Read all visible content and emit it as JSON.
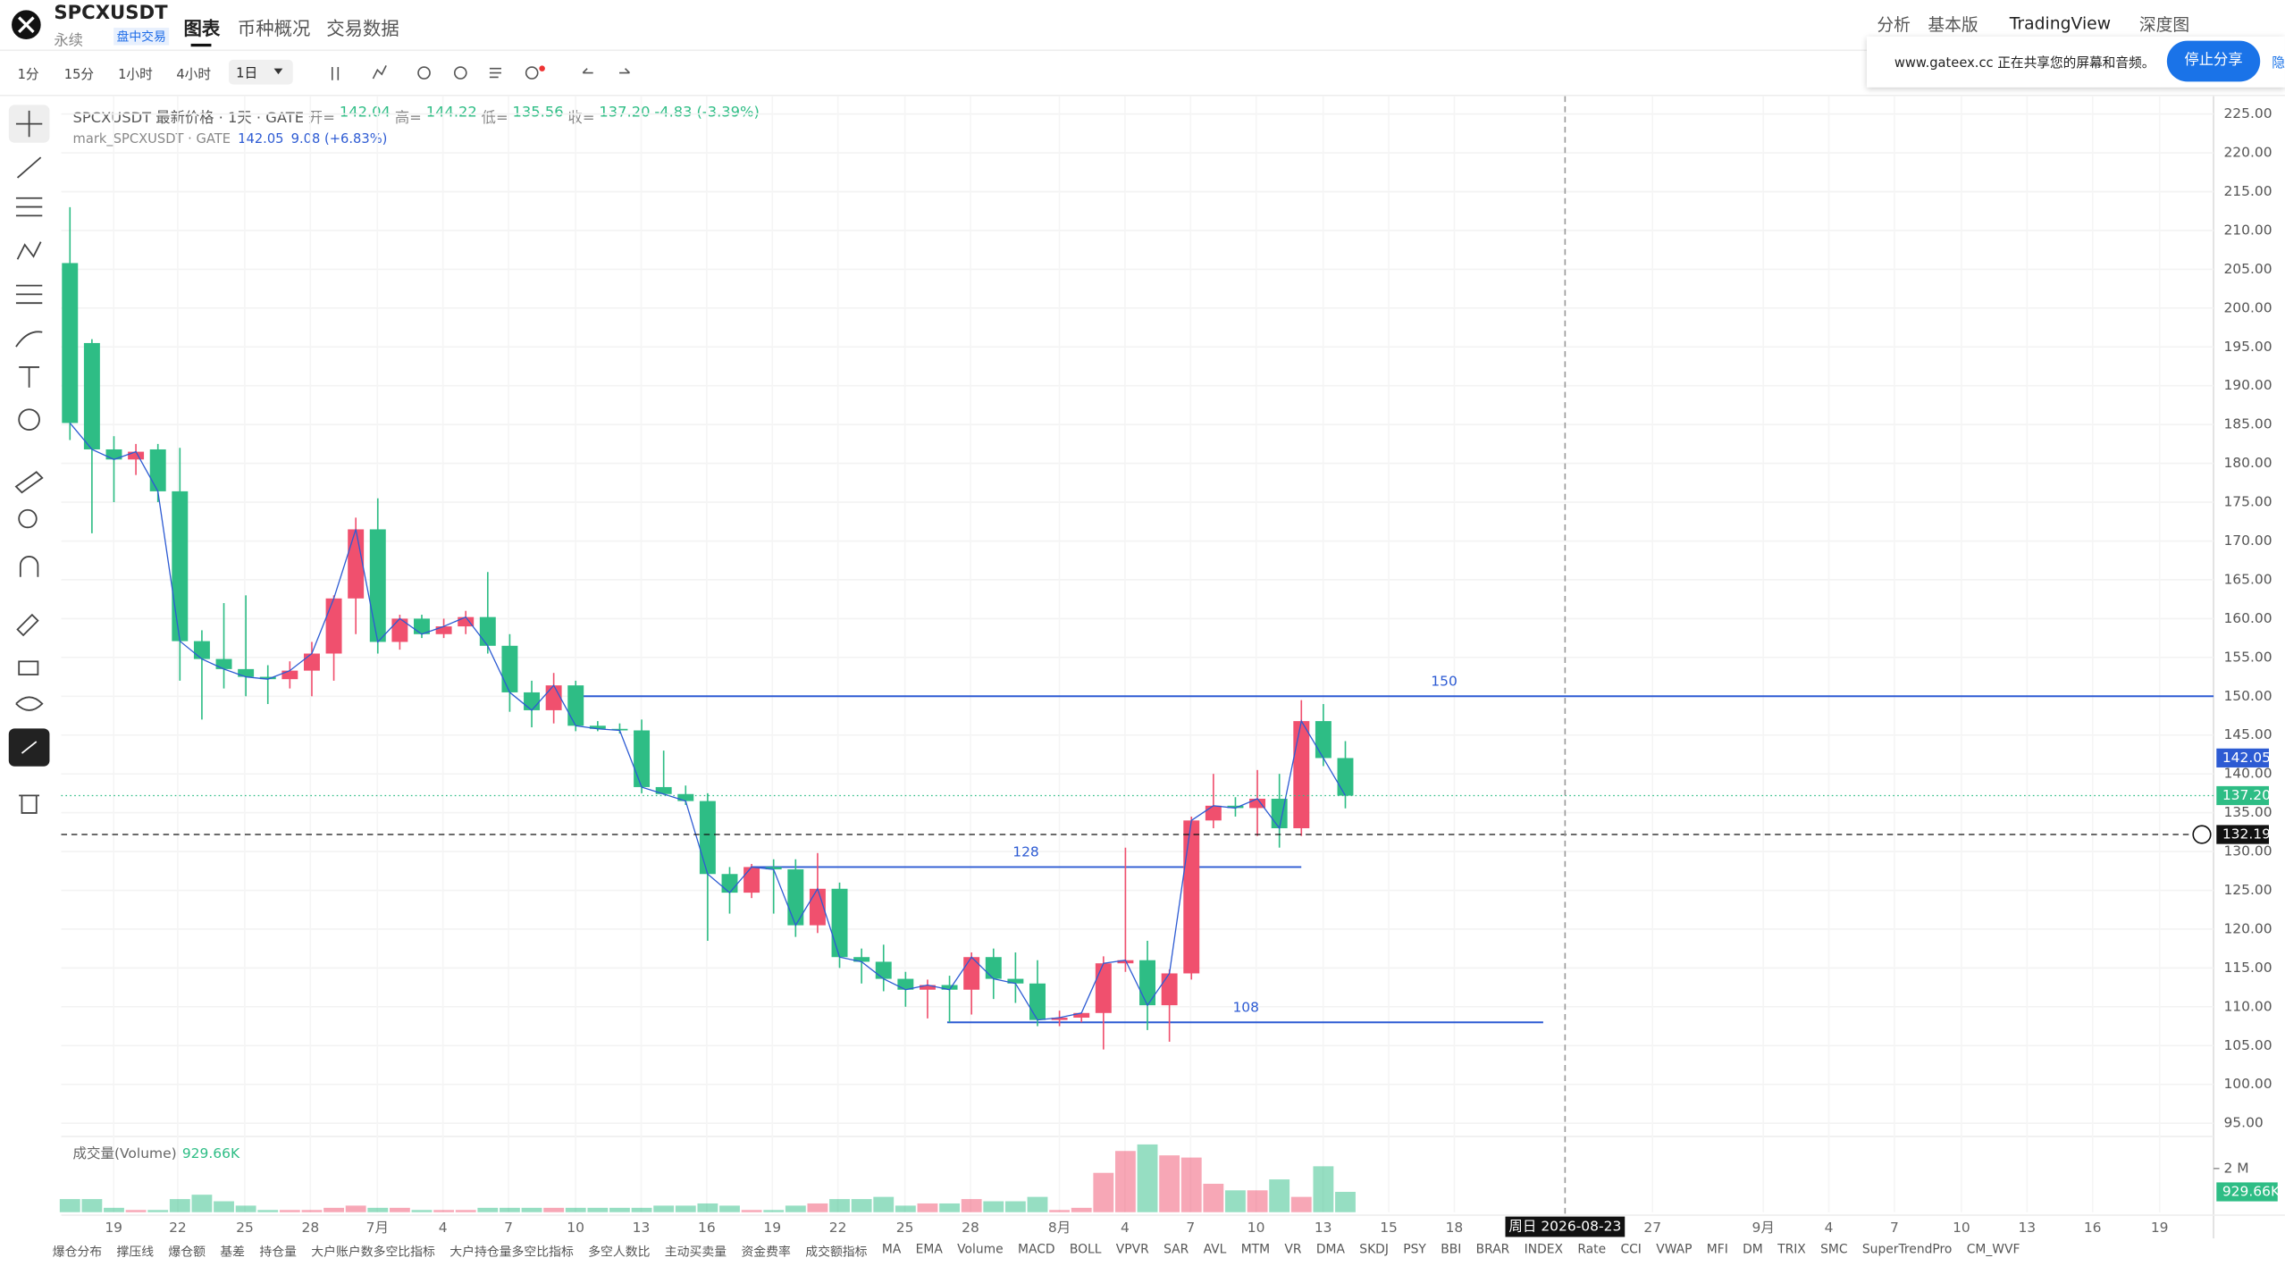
{
  "header": {
    "symbol": "SPCXUSDT",
    "contract": "永续",
    "status": "盘中交易",
    "tabs": [
      "图表",
      "币种概况",
      "交易数据"
    ],
    "right_links": [
      "分析",
      "基本版",
      "TradingView",
      "深度图"
    ]
  },
  "toolbar": {
    "intervals": [
      "1分",
      "15分",
      "1小时",
      "4小时",
      "1日"
    ]
  },
  "share_bar": {
    "text": "www.gateex.cc 正在共享您的屏幕和音频。",
    "button": "停止分享",
    "hide": "隐"
  },
  "legend": {
    "title": "SPCXUSDT 最新价格 · 1天 · GATE",
    "open_label": "开=",
    "open": 142.04,
    "high_label": "高=",
    "high": 144.22,
    "low_label": "低=",
    "low": 135.56,
    "close_label": "收=",
    "close": {
      "value": 137.2,
      "label": "137.20"
    },
    "change": -4.83,
    "change_pct": "(-3.39%)",
    "mark_title": "mark_SPCXUSDT · GATE",
    "mark_value": 142.05,
    "mark_change": "9.08 (+6.83%)"
  },
  "chart_data": {
    "type": "candlestick",
    "up_color": "#f0506e",
    "down_color": "#2ebd85",
    "open": [
      205.8,
      195.5,
      181.8,
      180.5,
      181.8,
      176.4,
      157.1,
      154.8,
      153.5,
      152.5,
      152.2,
      153.3,
      155.5,
      162.6,
      171.5,
      157,
      160,
      158,
      159,
      160.2,
      156.5,
      150.5,
      148.2,
      151.4,
      146.2,
      145.8,
      145.6,
      138.3,
      137.4,
      136.5,
      127.1,
      124.7,
      128,
      127.7,
      120.5,
      125.2,
      116.4,
      115.8,
      113.6,
      112.2,
      112.8,
      112.2,
      116.4,
      113.6,
      113,
      108.3,
      108.6,
      109.2,
      115.6,
      116,
      110.2,
      114.3,
      134,
      135.9,
      135.6,
      136.8,
      133,
      146.8,
      142.04
    ],
    "high": [
      213,
      196,
      183.5,
      182.5,
      182.5,
      182,
      158.5,
      162,
      163,
      154,
      154.5,
      157,
      163,
      173,
      175.5,
      160.5,
      160.5,
      160,
      161,
      166,
      158,
      152,
      153,
      152,
      146.8,
      146.5,
      147,
      143,
      138.5,
      137.5,
      128,
      128.4,
      129,
      129,
      129.8,
      126,
      117.5,
      118,
      114.5,
      113.5,
      114,
      117,
      117.5,
      117,
      116,
      109.5,
      109,
      116.5,
      130.5,
      118.5,
      114.8,
      134.5,
      140,
      137,
      140.5,
      140,
      149.5,
      149,
      144.22
    ],
    "low": [
      183,
      171,
      175,
      178.5,
      175,
      152,
      147,
      151,
      150,
      149,
      151,
      150,
      152,
      158,
      155.5,
      156,
      157.5,
      157.5,
      158,
      155.5,
      148,
      146,
      146.5,
      145.5,
      145.5,
      145.2,
      137.5,
      137.3,
      136,
      118.5,
      122,
      124,
      122,
      119,
      119.5,
      115,
      113,
      112,
      110,
      108.5,
      108,
      109,
      111,
      110.5,
      107.5,
      107.5,
      108,
      104.5,
      114.5,
      107,
      105.5,
      113.5,
      133,
      134.5,
      132,
      130.5,
      132,
      141,
      135.56
    ],
    "close": [
      185.2,
      181.8,
      180.5,
      181.5,
      176.4,
      157.1,
      154.8,
      153.5,
      152.5,
      152.2,
      153.3,
      155.5,
      162.6,
      171.5,
      157,
      160,
      158,
      159,
      160.2,
      156.5,
      150.5,
      148.2,
      151.4,
      146.2,
      145.8,
      145.6,
      138.3,
      137.4,
      136.5,
      127.1,
      124.7,
      128,
      127.7,
      120.5,
      125.2,
      116.4,
      115.8,
      113.6,
      112.2,
      112.8,
      112.2,
      116.4,
      113.6,
      113,
      108.3,
      108.6,
      109.2,
      115.6,
      116,
      110.2,
      114.3,
      134,
      135.9,
      135.6,
      136.8,
      133,
      146.8,
      142.04,
      137.2
    ],
    "volume": [
      0.6,
      0.6,
      0.2,
      0.1,
      0.1,
      0.6,
      0.8,
      0.5,
      0.3,
      0.1,
      0.1,
      0.1,
      0.2,
      0.3,
      0.2,
      0.2,
      0.1,
      0.1,
      0.1,
      0.2,
      0.2,
      0.2,
      0.2,
      0.2,
      0.2,
      0.2,
      0.2,
      0.3,
      0.3,
      0.4,
      0.3,
      0.1,
      0.1,
      0.3,
      0.4,
      0.6,
      0.6,
      0.7,
      0.3,
      0.4,
      0.4,
      0.6,
      0.5,
      0.5,
      0.7,
      0.1,
      0.2,
      1.8,
      2.8,
      3.1,
      2.6,
      2.5,
      1.3,
      1.0,
      1.0,
      1.5,
      0.7,
      2.1,
      0.93
    ],
    "ylim": [
      93.3,
      227.3
    ],
    "yticks": [
      {
        "value": 95,
        "label": "95.00"
      },
      {
        "value": 100,
        "label": "100.00"
      },
      {
        "value": 105,
        "label": "105.00"
      },
      {
        "value": 110,
        "label": "110.00"
      },
      {
        "value": 115,
        "label": "115.00"
      },
      {
        "value": 120,
        "label": "120.00"
      },
      {
        "value": 125,
        "label": "125.00"
      },
      {
        "value": 130,
        "label": "130.00"
      },
      {
        "value": 135,
        "label": "135.00"
      },
      {
        "value": 140,
        "label": "140.00"
      },
      {
        "value": 145,
        "label": "145.00"
      },
      {
        "value": 150,
        "label": "150.00"
      },
      {
        "value": 155,
        "label": "155.00"
      },
      {
        "value": 160,
        "label": "160.00"
      },
      {
        "value": 165,
        "label": "165.00"
      },
      {
        "value": 170,
        "label": "170.00"
      },
      {
        "value": 175,
        "label": "175.00"
      },
      {
        "value": 180,
        "label": "180.00"
      },
      {
        "value": 185,
        "label": "185.00"
      },
      {
        "value": 190,
        "label": "190.00"
      },
      {
        "value": 195,
        "label": "195.00"
      },
      {
        "value": 200,
        "label": "200.00"
      },
      {
        "value": 205,
        "label": "205.00"
      },
      {
        "value": 210,
        "label": "210.00"
      },
      {
        "value": 215,
        "label": "215.00"
      },
      {
        "value": 220,
        "label": "220.00"
      },
      {
        "value": 225,
        "label": "225.00"
      }
    ],
    "xticks": [
      "19",
      "22",
      "25",
      "28",
      "7月",
      "4",
      "7",
      "10",
      "13",
      "16",
      "19",
      "22",
      "25",
      "28",
      "8月",
      "4",
      "7",
      "10",
      "13",
      "15",
      "18",
      "27",
      "9月",
      "4",
      "7",
      "10",
      "13",
      "16",
      "19"
    ],
    "levels": [
      150,
      128,
      108
    ],
    "mark_price": {
      "value": 142.05,
      "label": "142.05"
    },
    "last_price": {
      "value": 137.2,
      "label": "137.20"
    },
    "crosshair_price": {
      "value": 132.19,
      "label": "132.19"
    },
    "crosshair_date": "周日 2026-08-23",
    "volume_title": "成交量(Volume)",
    "volume_last": {
      "value": 0.92966,
      "label": "929.66K"
    },
    "volume_ticks": [
      {
        "value": 2,
        "label": "2 M"
      }
    ]
  },
  "indicators": [
    "爆仓分布",
    "撑压线",
    "爆仓额",
    "基差",
    "持仓量",
    "大户账户数多空比指标",
    "大户持仓量多空比指标",
    "多空人数比",
    "主动买卖量",
    "资金费率",
    "成交额指标",
    "MA",
    "EMA",
    "Volume",
    "MACD",
    "BOLL",
    "VPVR",
    "SAR",
    "AVL",
    "MTM",
    "VR",
    "DMA",
    "SKDJ",
    "PSY",
    "BBI",
    "BRAR",
    "INDEX",
    "Rate",
    "CCI",
    "VWAP",
    "MFI",
    "DM",
    "TRIX",
    "SMC",
    "SuperTrendPro",
    "CM_WVF"
  ]
}
